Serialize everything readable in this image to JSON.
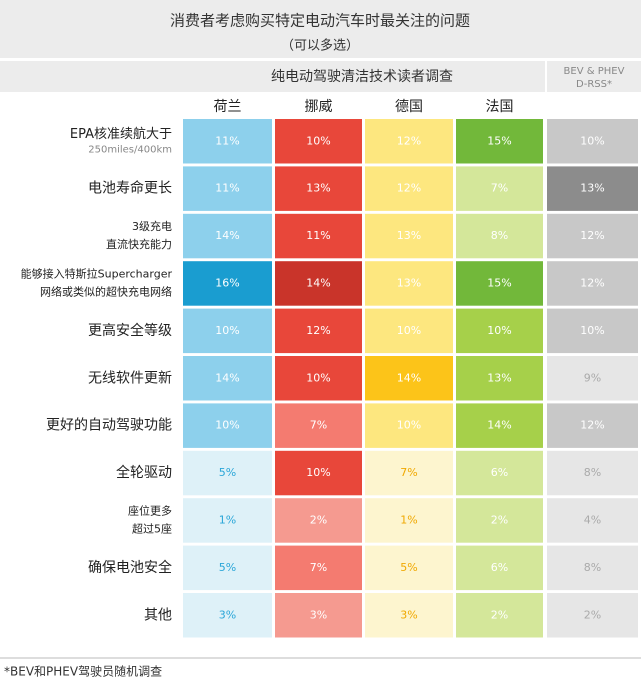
{
  "header": {
    "title": "消费者考虑购买特定电动汽车时最关注的问题",
    "subtitle": "（可以多选）",
    "survey": "纯电动驾驶清洁技术读者调查",
    "side_title": [
      "BEV & PHEV",
      "D-RSS*"
    ]
  },
  "table": {
    "columns": [
      "荷兰",
      "挪威",
      "德国",
      "法国"
    ],
    "rows": [
      {
        "label": [
          "EPA核准续航大于"
        ],
        "sublabel": "250miles/400km",
        "cells": [
          {
            "text": "11%",
            "fill": "#8dd0ec",
            "ink": "#ffffff"
          },
          {
            "text": "10%",
            "fill": "#e8473a",
            "ink": "#ffffff"
          },
          {
            "text": "12%",
            "fill": "#fde77f",
            "ink": "#ffffff"
          },
          {
            "text": "15%",
            "fill": "#72b83a",
            "ink": "#ffffff"
          },
          {
            "text": "10%",
            "fill": "#c8c8c8",
            "ink": "#ffffff"
          }
        ]
      },
      {
        "label": [
          "电池寿命更长"
        ],
        "cells": [
          {
            "text": "11%",
            "fill": "#8dd0ec",
            "ink": "#ffffff"
          },
          {
            "text": "13%",
            "fill": "#e8473a",
            "ink": "#ffffff"
          },
          {
            "text": "12%",
            "fill": "#fde77f",
            "ink": "#ffffff"
          },
          {
            "text": "7%",
            "fill": "#d4e79a",
            "ink": "#ffffff"
          },
          {
            "text": "13%",
            "fill": "#8c8c8c",
            "ink": "#ffffff"
          }
        ]
      },
      {
        "label": [
          "3级充电",
          "直流快充能力"
        ],
        "cells": [
          {
            "text": "14%",
            "fill": "#8dd0ec",
            "ink": "#ffffff"
          },
          {
            "text": "11%",
            "fill": "#e8473a",
            "ink": "#ffffff"
          },
          {
            "text": "13%",
            "fill": "#fde77f",
            "ink": "#ffffff"
          },
          {
            "text": "8%",
            "fill": "#d4e79a",
            "ink": "#ffffff"
          },
          {
            "text": "12%",
            "fill": "#c8c8c8",
            "ink": "#ffffff"
          }
        ]
      },
      {
        "label": [
          "能够接入特斯拉Supercharger",
          "网络或类似的超快充电网络"
        ],
        "cells": [
          {
            "text": "16%",
            "fill": "#1a9dd0",
            "ink": "#ffffff"
          },
          {
            "text": "14%",
            "fill": "#c9342a",
            "ink": "#ffffff"
          },
          {
            "text": "13%",
            "fill": "#fde77f",
            "ink": "#ffffff"
          },
          {
            "text": "15%",
            "fill": "#72b83a",
            "ink": "#ffffff"
          },
          {
            "text": "12%",
            "fill": "#c8c8c8",
            "ink": "#ffffff"
          }
        ]
      },
      {
        "label": [
          "更高安全等级"
        ],
        "cells": [
          {
            "text": "10%",
            "fill": "#8dd0ec",
            "ink": "#ffffff"
          },
          {
            "text": "12%",
            "fill": "#e8473a",
            "ink": "#ffffff"
          },
          {
            "text": "10%",
            "fill": "#fde77f",
            "ink": "#ffffff"
          },
          {
            "text": "10%",
            "fill": "#a6d04a",
            "ink": "#ffffff"
          },
          {
            "text": "10%",
            "fill": "#c8c8c8",
            "ink": "#ffffff"
          }
        ]
      },
      {
        "label": [
          "无线软件更新"
        ],
        "cells": [
          {
            "text": "14%",
            "fill": "#8dd0ec",
            "ink": "#ffffff"
          },
          {
            "text": "10%",
            "fill": "#e8473a",
            "ink": "#ffffff"
          },
          {
            "text": "14%",
            "fill": "#fcc419",
            "ink": "#ffffff"
          },
          {
            "text": "13%",
            "fill": "#a6d04a",
            "ink": "#ffffff"
          },
          {
            "text": "9%",
            "fill": "#e6e6e6",
            "ink": "#aaaaaa"
          }
        ]
      },
      {
        "label": [
          "更好的自动驾驶功能"
        ],
        "cells": [
          {
            "text": "10%",
            "fill": "#8dd0ec",
            "ink": "#ffffff"
          },
          {
            "text": "7%",
            "fill": "#f47b70",
            "ink": "#ffffff"
          },
          {
            "text": "10%",
            "fill": "#fde77f",
            "ink": "#ffffff"
          },
          {
            "text": "14%",
            "fill": "#a6d04a",
            "ink": "#ffffff"
          },
          {
            "text": "12%",
            "fill": "#c8c8c8",
            "ink": "#ffffff"
          }
        ]
      },
      {
        "label": [
          "全轮驱动"
        ],
        "cells": [
          {
            "text": "5%",
            "fill": "#def1f8",
            "ink": "#2aa6d8"
          },
          {
            "text": "10%",
            "fill": "#e8473a",
            "ink": "#ffffff"
          },
          {
            "text": "7%",
            "fill": "#fdf5cf",
            "ink": "#f0a800"
          },
          {
            "text": "6%",
            "fill": "#d4e79a",
            "ink": "#ffffff"
          },
          {
            "text": "8%",
            "fill": "#e6e6e6",
            "ink": "#aaaaaa"
          }
        ]
      },
      {
        "label": [
          "座位更多",
          "超过5座"
        ],
        "cells": [
          {
            "text": "1%",
            "fill": "#def1f8",
            "ink": "#2aa6d8"
          },
          {
            "text": "2%",
            "fill": "#f59a90",
            "ink": "#ffffff"
          },
          {
            "text": "1%",
            "fill": "#fdf5cf",
            "ink": "#f0a800"
          },
          {
            "text": "2%",
            "fill": "#d4e79a",
            "ink": "#ffffff"
          },
          {
            "text": "4%",
            "fill": "#e6e6e6",
            "ink": "#aaaaaa"
          }
        ]
      },
      {
        "label": [
          "确保电池安全"
        ],
        "cells": [
          {
            "text": "5%",
            "fill": "#def1f8",
            "ink": "#2aa6d8"
          },
          {
            "text": "7%",
            "fill": "#f47b70",
            "ink": "#ffffff"
          },
          {
            "text": "5%",
            "fill": "#fdf5cf",
            "ink": "#f0a800"
          },
          {
            "text": "6%",
            "fill": "#d4e79a",
            "ink": "#ffffff"
          },
          {
            "text": "8%",
            "fill": "#e6e6e6",
            "ink": "#aaaaaa"
          }
        ]
      },
      {
        "label": [
          "其他"
        ],
        "cells": [
          {
            "text": "3%",
            "fill": "#def1f8",
            "ink": "#2aa6d8"
          },
          {
            "text": "3%",
            "fill": "#f59a90",
            "ink": "#ffffff"
          },
          {
            "text": "3%",
            "fill": "#fdf5cf",
            "ink": "#f0a800"
          },
          {
            "text": "2%",
            "fill": "#d4e79a",
            "ink": "#ffffff"
          },
          {
            "text": "2%",
            "fill": "#e6e6e6",
            "ink": "#aaaaaa"
          }
        ]
      }
    ]
  },
  "footnote": "*BEV和PHEV驾驶员随机调查"
}
